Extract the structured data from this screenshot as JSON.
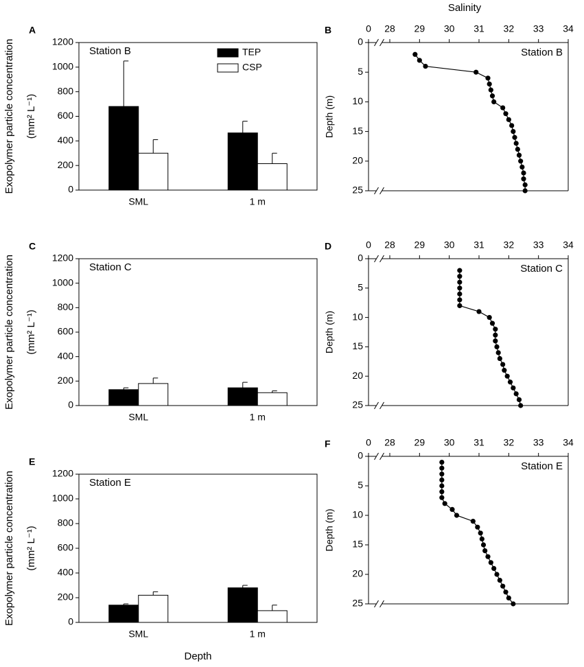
{
  "chart_data": [
    {
      "type": "bar",
      "panel": "A",
      "annotation": "Station B",
      "ylabel": "Exopolymer particle concentration",
      "ylabel_unit": "(mm² L⁻¹)",
      "categories": [
        "SML",
        "1 m"
      ],
      "series": [
        {
          "name": "TEP",
          "color": "#000000",
          "values": [
            680,
            465
          ],
          "errors": [
            370,
            95
          ]
        },
        {
          "name": "CSP",
          "color": "#ffffff",
          "values": [
            300,
            215
          ],
          "errors": [
            110,
            85
          ]
        }
      ],
      "ylim": [
        0,
        1200
      ],
      "yticks": [
        0,
        200,
        400,
        600,
        800,
        1000,
        1200
      ],
      "legend": "top"
    },
    {
      "type": "line",
      "panel": "B",
      "annotation": "Station B",
      "xlabel": "Salinity",
      "ylabel": "Depth (m)",
      "x": [
        28.85,
        29.0,
        29.2,
        30.9,
        31.3,
        31.35,
        31.4,
        31.45,
        31.5,
        31.8,
        31.9,
        32.0,
        32.1,
        32.15,
        32.2,
        32.25,
        32.3,
        32.35,
        32.4,
        32.45,
        32.5,
        32.5,
        32.55,
        32.55
      ],
      "values": [
        2,
        3,
        4,
        5,
        6,
        7,
        8,
        9,
        10,
        11,
        12,
        13,
        14,
        15,
        16,
        17,
        18,
        19,
        20,
        21,
        22,
        23,
        24,
        25
      ],
      "color": "#000000",
      "xlim": [
        0,
        34
      ],
      "xticks": [
        0,
        28,
        29,
        30,
        31,
        32,
        33,
        34
      ],
      "xbreak": [
        0,
        28
      ],
      "ylim": [
        0,
        25
      ],
      "yticks": [
        0,
        5,
        10,
        15,
        20,
        25
      ],
      "y_inverted": true
    },
    {
      "type": "bar",
      "panel": "C",
      "annotation": "Station C",
      "ylabel": "Exopolymer particle concentration",
      "ylabel_unit": "(mm² L⁻¹)",
      "categories": [
        "SML",
        "1 m"
      ],
      "series": [
        {
          "color": "#000000",
          "values": [
            130,
            145
          ],
          "errors": [
            15,
            45
          ]
        },
        {
          "color": "#ffffff",
          "values": [
            180,
            105
          ],
          "errors": [
            45,
            15
          ]
        }
      ],
      "ylim": [
        0,
        1200
      ],
      "yticks": [
        0,
        200,
        400,
        600,
        800,
        1000,
        1200
      ]
    },
    {
      "type": "line",
      "panel": "D",
      "annotation": "Station C",
      "ylabel": "Depth (m)",
      "x": [
        30.35,
        30.35,
        30.35,
        30.35,
        30.35,
        30.35,
        30.35,
        31.0,
        31.35,
        31.45,
        31.55,
        31.55,
        31.55,
        31.6,
        31.65,
        31.7,
        31.8,
        31.85,
        31.95,
        32.05,
        32.15,
        32.25,
        32.35,
        32.4
      ],
      "values": [
        2,
        3,
        4,
        5,
        6,
        7,
        8,
        9,
        10,
        11,
        12,
        13,
        14,
        15,
        16,
        17,
        18,
        19,
        20,
        21,
        22,
        23,
        24,
        25
      ],
      "color": "#000000",
      "xlim": [
        0,
        34
      ],
      "xticks": [
        0,
        28,
        29,
        30,
        31,
        32,
        33,
        34
      ],
      "xbreak": [
        0,
        28
      ],
      "ylim": [
        0,
        25
      ],
      "yticks": [
        0,
        5,
        10,
        15,
        20,
        25
      ],
      "y_inverted": true
    },
    {
      "type": "bar",
      "panel": "E",
      "annotation": "Station E",
      "xlabel": "Depth",
      "ylabel": "Exopolymer particle concentration",
      "ylabel_unit": "(mm² L⁻¹)",
      "categories": [
        "SML",
        "1 m"
      ],
      "series": [
        {
          "color": "#000000",
          "values": [
            140,
            280
          ],
          "errors": [
            10,
            20
          ]
        },
        {
          "color": "#ffffff",
          "values": [
            220,
            95
          ],
          "errors": [
            28,
            45
          ]
        }
      ],
      "ylim": [
        0,
        1200
      ],
      "yticks": [
        0,
        200,
        400,
        600,
        800,
        1000,
        1200
      ]
    },
    {
      "type": "line",
      "panel": "F",
      "annotation": "Station E",
      "ylabel": "Depth (m)",
      "x": [
        29.75,
        29.75,
        29.75,
        29.75,
        29.75,
        29.75,
        29.75,
        29.85,
        30.1,
        30.25,
        30.8,
        30.95,
        31.05,
        31.1,
        31.15,
        31.2,
        31.3,
        31.4,
        31.5,
        31.6,
        31.7,
        31.8,
        31.9,
        32.0,
        32.15
      ],
      "values": [
        1,
        2,
        3,
        4,
        5,
        6,
        7,
        8,
        9,
        10,
        11,
        12,
        13,
        14,
        15,
        16,
        17,
        18,
        19,
        20,
        21,
        22,
        23,
        24,
        25
      ],
      "color": "#000000",
      "xlim": [
        0,
        34
      ],
      "xticks": [
        0,
        28,
        29,
        30,
        31,
        32,
        33,
        34
      ],
      "xbreak": [
        0,
        28
      ],
      "ylim": [
        0,
        25
      ],
      "yticks": [
        0,
        5,
        10,
        15,
        20,
        25
      ],
      "y_inverted": true
    }
  ]
}
